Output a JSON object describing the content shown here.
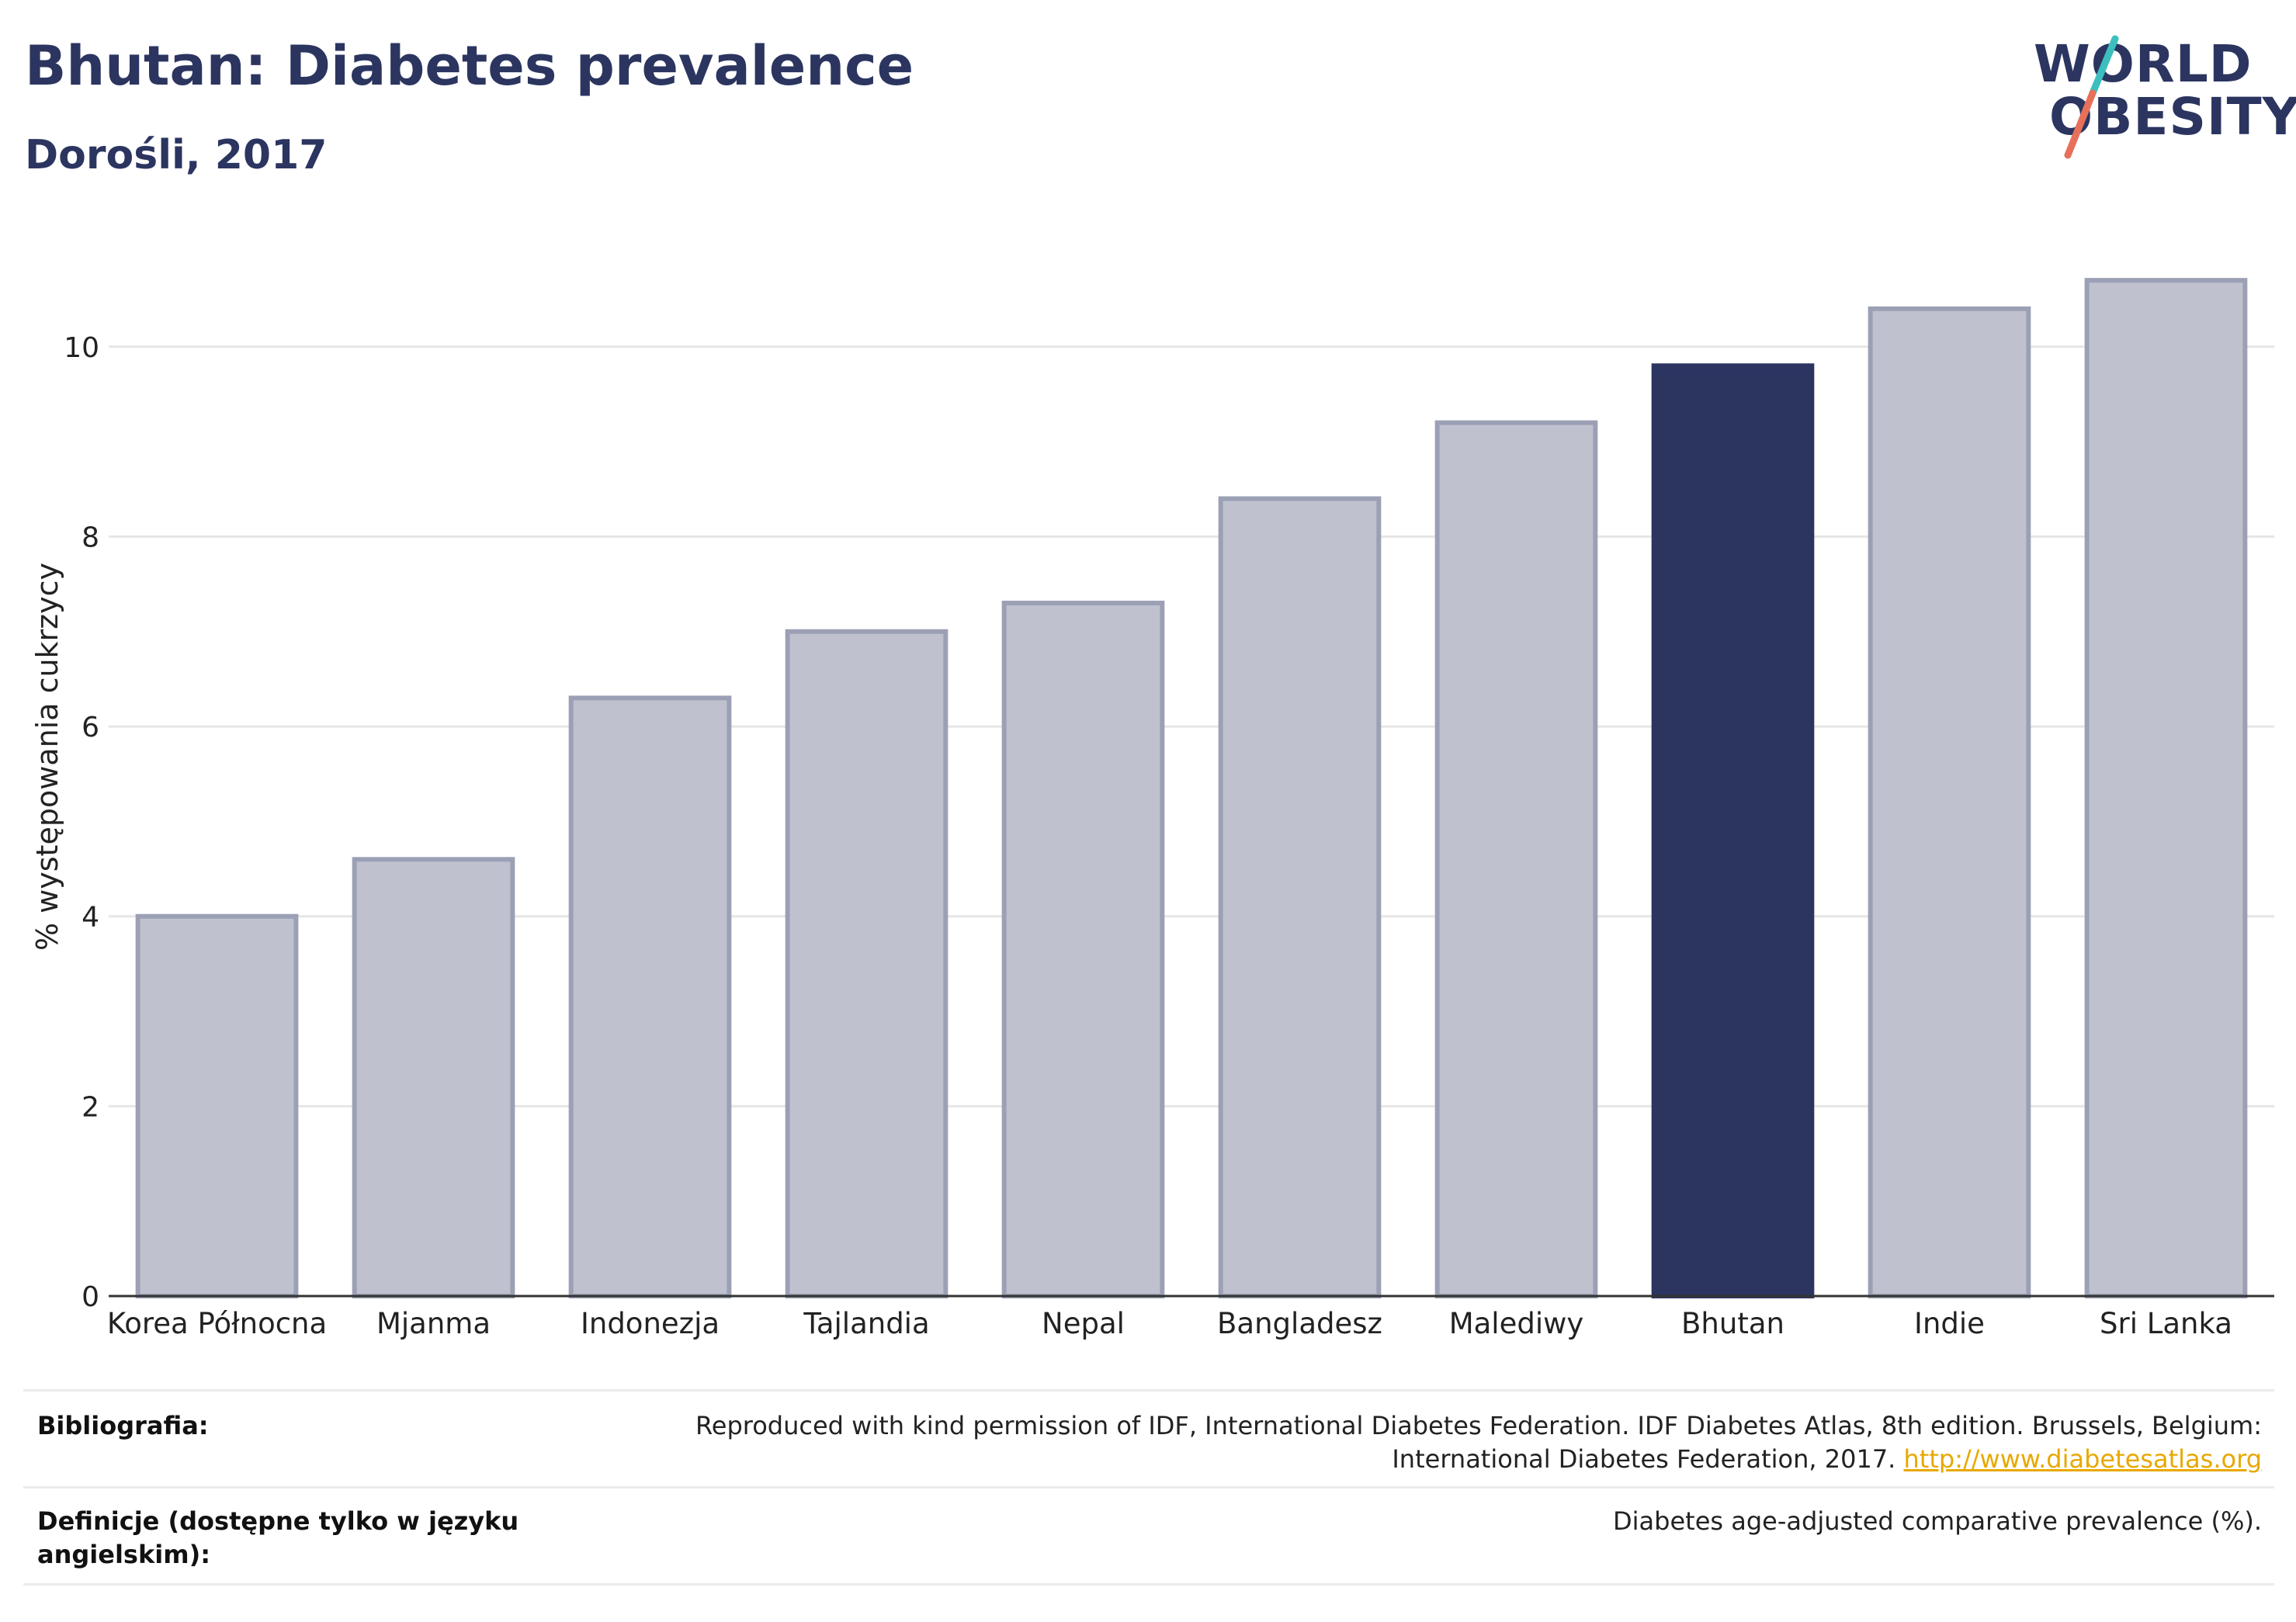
{
  "header": {
    "title": "Bhutan: Diabetes prevalence",
    "subtitle": "Dorośli, 2017"
  },
  "logo": {
    "line1": "WORLD",
    "line2": "OBESITY",
    "accent_colors": [
      "#3cbfbf",
      "#e8705a"
    ]
  },
  "colors": {
    "highlight": "#2b3560",
    "bar": "#bfc2ce",
    "bar_stroke": "#9ba0b5",
    "grid": "#e6e6e6"
  },
  "chart_data": {
    "type": "bar",
    "title": "Bhutan: Diabetes prevalence",
    "subtitle": "Dorośli, 2017",
    "xlabel": "",
    "ylabel": "% występowania cukrzycy",
    "categories": [
      "Korea Północna",
      "Mjanma",
      "Indonezja",
      "Tajlandia",
      "Nepal",
      "Bangladesz",
      "Malediwy",
      "Bhutan",
      "Indie",
      "Sri Lanka"
    ],
    "values": [
      4.0,
      4.6,
      6.3,
      7.0,
      7.3,
      8.4,
      9.2,
      9.8,
      10.4,
      10.7
    ],
    "highlight": "Bhutan",
    "ylim": [
      0,
      11.2
    ],
    "yticks": [
      0,
      2,
      4,
      6,
      8,
      10
    ],
    "grid": "horizontal",
    "legend": "none"
  },
  "footer": {
    "bibliography_label": "Bibliografia:",
    "bibliography_line1": "Reproduced with kind permission of IDF, International Diabetes Federation. IDF Diabetes Atlas, 8th edition. Brussels, Belgium:",
    "bibliography_line2": "International Diabetes Federation, 2017.",
    "bibliography_link": "http://www.diabetesatlas.org",
    "definitions_label_line1": "Definicje (dostępne tylko w języku",
    "definitions_label_line2": "angielskim):",
    "definitions_text": "Diabetes age-adjusted comparative prevalence (%)."
  }
}
